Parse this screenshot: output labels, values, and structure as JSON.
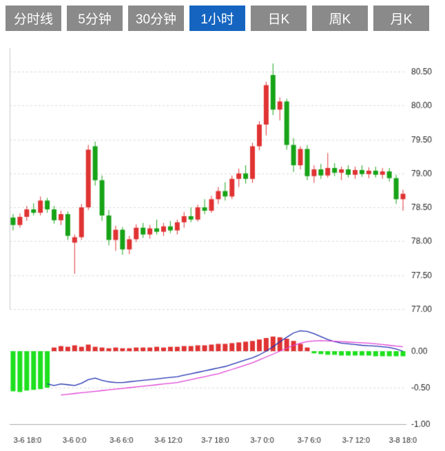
{
  "tabs": [
    {
      "label": "分时线",
      "active": false
    },
    {
      "label": "5分钟",
      "active": false
    },
    {
      "label": "30分钟",
      "active": false
    },
    {
      "label": "1小时",
      "active": true
    },
    {
      "label": "日K",
      "active": false
    },
    {
      "label": "周K",
      "active": false
    },
    {
      "label": "月K",
      "active": false
    }
  ],
  "colors": {
    "up": "#e03333",
    "down": "#17a317",
    "macd_up": "#e03333",
    "macd_down": "#1ee01e",
    "dif_line": "#2030b0",
    "dea_line": "#e040d5",
    "grid": "#dadada",
    "axis_line": "#c8c8c8",
    "axis_text": "#222222",
    "tab_bg": "#8a8a8a",
    "tab_active_bg": "#1565c0"
  },
  "chart_data": {
    "type": "candlestick",
    "panels": [
      "price",
      "macd"
    ],
    "legend_position": "none",
    "grid": true,
    "x_tick_labels": [
      "3-6 18:0",
      "3-6 0:0",
      "3-6 6:0",
      "3-6 12:0",
      "3-7 18:0",
      "3-7 0:0",
      "3-7 6:0",
      "3-7 12:0",
      "3-8 18:0"
    ],
    "price_ticks": [
      "80.50",
      "80.00",
      "79.50",
      "79.00",
      "78.50",
      "78.00",
      "77.50",
      "77.00"
    ],
    "price_range": [
      76.94,
      80.85
    ],
    "macd_ticks": [
      "0.00",
      "-0.50",
      "-1.00"
    ],
    "macd_range": [
      -1.05,
      0.45
    ],
    "candles": [
      [
        78.35,
        78.4,
        78.16,
        78.24
      ],
      [
        78.24,
        78.41,
        78.2,
        78.36
      ],
      [
        78.36,
        78.52,
        78.3,
        78.47
      ],
      [
        78.47,
        78.56,
        78.38,
        78.42
      ],
      [
        78.42,
        78.66,
        78.38,
        78.6
      ],
      [
        78.6,
        78.64,
        78.42,
        78.47
      ],
      [
        78.47,
        78.52,
        78.26,
        78.31
      ],
      [
        78.31,
        78.45,
        78.24,
        78.4
      ],
      [
        78.4,
        78.44,
        78.02,
        78.08
      ],
      [
        77.98,
        78.1,
        77.52,
        78.06
      ],
      [
        78.06,
        78.55,
        78.02,
        78.5
      ],
      [
        78.5,
        79.42,
        78.46,
        79.35
      ],
      [
        79.4,
        79.47,
        78.82,
        78.9
      ],
      [
        78.9,
        78.97,
        78.3,
        78.38
      ],
      [
        78.38,
        78.46,
        77.94,
        78.02
      ],
      [
        78.02,
        78.23,
        77.86,
        78.17
      ],
      [
        78.17,
        78.21,
        77.8,
        77.88
      ],
      [
        77.88,
        78.08,
        77.81,
        78.03
      ],
      [
        78.03,
        78.25,
        77.99,
        78.2
      ],
      [
        78.2,
        78.27,
        78.05,
        78.1
      ],
      [
        78.1,
        78.24,
        78.04,
        78.19
      ],
      [
        78.19,
        78.32,
        78.1,
        78.14
      ],
      [
        78.14,
        78.27,
        78.08,
        78.22
      ],
      [
        78.22,
        78.3,
        78.12,
        78.16
      ],
      [
        78.16,
        78.32,
        78.1,
        78.28
      ],
      [
        78.28,
        78.43,
        78.2,
        78.37
      ],
      [
        78.37,
        78.5,
        78.28,
        78.32
      ],
      [
        78.32,
        78.54,
        78.29,
        78.5
      ],
      [
        78.5,
        78.62,
        78.4,
        78.45
      ],
      [
        78.45,
        78.67,
        78.42,
        78.62
      ],
      [
        78.62,
        78.8,
        78.55,
        78.74
      ],
      [
        78.74,
        78.87,
        78.6,
        78.66
      ],
      [
        78.66,
        78.97,
        78.62,
        78.92
      ],
      [
        78.92,
        79.07,
        78.8,
        79.0
      ],
      [
        79.0,
        79.12,
        78.85,
        78.92
      ],
      [
        78.92,
        79.45,
        78.86,
        79.4
      ],
      [
        79.4,
        79.77,
        79.34,
        79.72
      ],
      [
        79.72,
        80.35,
        79.56,
        80.3
      ],
      [
        80.45,
        80.62,
        79.86,
        79.94
      ],
      [
        79.94,
        80.12,
        79.78,
        80.06
      ],
      [
        80.06,
        80.1,
        79.35,
        79.42
      ],
      [
        79.42,
        79.52,
        79.02,
        79.12
      ],
      [
        79.12,
        79.4,
        79.06,
        79.36
      ],
      [
        79.36,
        79.42,
        78.9,
        78.96
      ],
      [
        78.96,
        79.12,
        78.86,
        79.06
      ],
      [
        79.06,
        79.14,
        78.92,
        78.97
      ],
      [
        78.97,
        79.3,
        78.94,
        79.08
      ],
      [
        79.08,
        79.15,
        78.96,
        79.01
      ],
      [
        79.01,
        79.1,
        78.9,
        79.06
      ],
      [
        79.06,
        79.12,
        78.94,
        78.98
      ],
      [
        78.98,
        79.1,
        78.92,
        79.05
      ],
      [
        79.05,
        79.12,
        78.95,
        78.99
      ],
      [
        78.99,
        79.09,
        78.93,
        79.04
      ],
      [
        79.04,
        79.1,
        78.94,
        78.98
      ],
      [
        78.98,
        79.08,
        78.92,
        79.03
      ],
      [
        79.03,
        79.08,
        78.88,
        78.93
      ],
      [
        78.93,
        78.98,
        78.55,
        78.62
      ],
      [
        78.62,
        78.76,
        78.45,
        78.7
      ]
    ],
    "macd": {
      "hist": [
        -0.55,
        -0.56,
        -0.54,
        -0.53,
        -0.52,
        -0.5,
        0.05,
        0.07,
        0.06,
        0.08,
        0.06,
        0.09,
        0.06,
        0.05,
        0.04,
        0.05,
        0.04,
        0.04,
        0.05,
        0.05,
        0.05,
        0.06,
        0.05,
        0.06,
        0.06,
        0.07,
        0.07,
        0.08,
        0.08,
        0.09,
        0.1,
        0.1,
        0.11,
        0.12,
        0.13,
        0.14,
        0.16,
        0.18,
        0.2,
        0.19,
        0.17,
        0.14,
        0.1,
        0.05,
        -0.03,
        -0.04,
        -0.05,
        -0.05,
        -0.06,
        -0.06,
        -0.06,
        -0.06,
        -0.06,
        -0.07,
        -0.07,
        -0.07,
        -0.07,
        -0.07
      ],
      "dif": [
        null,
        null,
        null,
        null,
        null,
        -0.45,
        -0.47,
        -0.45,
        -0.46,
        -0.47,
        -0.44,
        -0.39,
        -0.37,
        -0.4,
        -0.42,
        -0.43,
        -0.43,
        -0.42,
        -0.41,
        -0.4,
        -0.39,
        -0.38,
        -0.37,
        -0.36,
        -0.35,
        -0.33,
        -0.31,
        -0.29,
        -0.27,
        -0.25,
        -0.23,
        -0.21,
        -0.18,
        -0.15,
        -0.12,
        -0.09,
        -0.05,
        0.0,
        0.06,
        0.13,
        0.19,
        0.25,
        0.28,
        0.27,
        0.24,
        0.2,
        0.16,
        0.13,
        0.11,
        0.1,
        0.09,
        0.08,
        0.075,
        0.07,
        0.06,
        0.05,
        0.03,
        0.0
      ],
      "dea": [
        null,
        null,
        null,
        null,
        null,
        null,
        null,
        -0.6,
        -0.59,
        -0.58,
        -0.57,
        -0.56,
        -0.55,
        -0.54,
        -0.53,
        -0.52,
        -0.51,
        -0.5,
        -0.49,
        -0.48,
        -0.47,
        -0.46,
        -0.45,
        -0.44,
        -0.43,
        -0.41,
        -0.39,
        -0.37,
        -0.35,
        -0.33,
        -0.31,
        -0.28,
        -0.25,
        -0.22,
        -0.19,
        -0.16,
        -0.12,
        -0.08,
        -0.04,
        0.0,
        0.04,
        0.08,
        0.11,
        0.13,
        0.14,
        0.145,
        0.14,
        0.135,
        0.13,
        0.125,
        0.12,
        0.115,
        0.11,
        0.1,
        0.09,
        0.08,
        0.07,
        0.06
      ]
    }
  }
}
